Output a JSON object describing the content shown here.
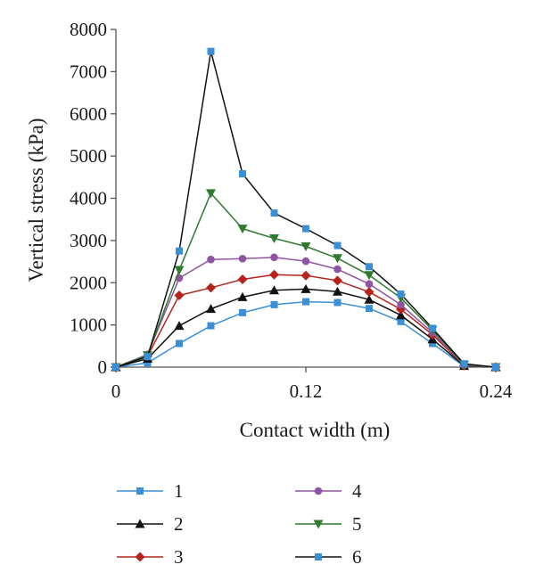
{
  "chart_data": {
    "type": "line",
    "xlabel": "Contact width (m)",
    "ylabel": "Vertical stress (kPa)",
    "xlim": [
      0,
      0.24
    ],
    "ylim": [
      0,
      8000
    ],
    "x_ticks": [
      0,
      0.12,
      0.24
    ],
    "x_tick_labels": [
      "0",
      "0.12",
      "0.24"
    ],
    "y_ticks": [
      0,
      1000,
      2000,
      3000,
      4000,
      5000,
      6000,
      7000,
      8000
    ],
    "y_tick_labels": [
      "0",
      "1000",
      "2000",
      "3000",
      "4000",
      "5000",
      "6000",
      "7000",
      "8000"
    ],
    "grid": false,
    "legend_position": "bottom",
    "x": [
      0,
      0.02,
      0.04,
      0.06,
      0.08,
      0.1,
      0.12,
      0.14,
      0.16,
      0.18,
      0.2,
      0.22,
      0.24
    ],
    "series": [
      {
        "name": "1",
        "color": "#3a8fd6",
        "marker": "square",
        "values": [
          0,
          100,
          560,
          980,
          1290,
          1480,
          1550,
          1530,
          1390,
          1080,
          560,
          20,
          0
        ]
      },
      {
        "name": "2",
        "color": "#111111",
        "marker": "triangle-up",
        "values": [
          0,
          200,
          980,
          1380,
          1660,
          1820,
          1850,
          1790,
          1600,
          1230,
          660,
          30,
          0
        ]
      },
      {
        "name": "3",
        "color": "#b5231b",
        "marker": "diamond",
        "values": [
          0,
          260,
          1700,
          1880,
          2080,
          2190,
          2170,
          2050,
          1780,
          1370,
          770,
          40,
          0
        ]
      },
      {
        "name": "4",
        "color": "#9055a2",
        "marker": "circle",
        "values": [
          0,
          300,
          2110,
          2550,
          2570,
          2600,
          2510,
          2320,
          1970,
          1480,
          820,
          50,
          0
        ]
      },
      {
        "name": "5",
        "color": "#2f7a2f",
        "marker": "triangle-down",
        "values": [
          0,
          280,
          2300,
          4120,
          3280,
          3050,
          2860,
          2580,
          2180,
          1640,
          880,
          60,
          0
        ]
      },
      {
        "name": "6",
        "color": "#3a8fd6",
        "line_color": "#111111",
        "marker": "square",
        "values": [
          0,
          250,
          2750,
          7480,
          4580,
          3650,
          3280,
          2880,
          2380,
          1730,
          920,
          80,
          0
        ]
      }
    ]
  }
}
